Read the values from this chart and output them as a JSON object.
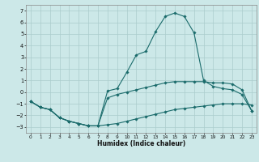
{
  "xlabel": "Humidex (Indice chaleur)",
  "background_color": "#cce8e8",
  "grid_color": "#aacccc",
  "line_color": "#1a6b6b",
  "xlim": [
    -0.5,
    23.5
  ],
  "ylim": [
    -3.5,
    7.5
  ],
  "xticks": [
    0,
    1,
    2,
    3,
    4,
    5,
    6,
    7,
    8,
    9,
    10,
    11,
    12,
    13,
    14,
    15,
    16,
    17,
    18,
    19,
    20,
    21,
    22,
    23
  ],
  "yticks": [
    -3,
    -2,
    -1,
    0,
    1,
    2,
    3,
    4,
    5,
    6,
    7
  ],
  "curve1_x": [
    0,
    1,
    2,
    3,
    4,
    5,
    6,
    7,
    8,
    9,
    10,
    11,
    12,
    13,
    14,
    15,
    16,
    17,
    18,
    19,
    20,
    21,
    22,
    23
  ],
  "curve1_y": [
    -0.8,
    -1.3,
    -1.5,
    -2.2,
    -2.5,
    -2.7,
    -2.9,
    -2.9,
    -2.8,
    -2.7,
    -2.5,
    -2.3,
    -2.1,
    -1.9,
    -1.7,
    -1.5,
    -1.4,
    -1.3,
    -1.2,
    -1.1,
    -1.0,
    -1.0,
    -1.0,
    -1.1
  ],
  "curve2_x": [
    0,
    1,
    2,
    3,
    4,
    5,
    6,
    7,
    8,
    9,
    10,
    11,
    12,
    13,
    14,
    15,
    16,
    17,
    18,
    19,
    20,
    21,
    22,
    23
  ],
  "curve2_y": [
    -0.8,
    -1.3,
    -1.5,
    -2.2,
    -2.5,
    -2.7,
    -2.9,
    -2.9,
    -0.5,
    -0.2,
    0.0,
    0.2,
    0.4,
    0.6,
    0.8,
    0.9,
    0.9,
    0.9,
    0.9,
    0.8,
    0.8,
    0.7,
    0.2,
    -1.6
  ],
  "curve3_x": [
    0,
    1,
    2,
    3,
    4,
    5,
    6,
    7,
    8,
    9,
    10,
    11,
    12,
    13,
    14,
    15,
    16,
    17,
    18,
    19,
    20,
    21,
    22,
    23
  ],
  "curve3_y": [
    -0.8,
    -1.3,
    -1.5,
    -2.2,
    -2.5,
    -2.7,
    -2.9,
    -2.9,
    0.1,
    0.3,
    1.7,
    3.2,
    3.5,
    5.2,
    6.5,
    6.8,
    6.5,
    5.1,
    1.0,
    0.5,
    0.3,
    0.2,
    -0.2,
    -1.6
  ]
}
